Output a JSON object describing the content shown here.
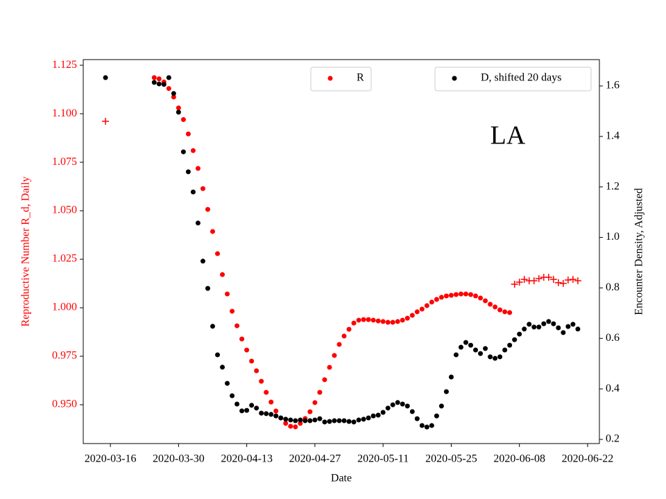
{
  "chart_data": {
    "type": "scatter",
    "xlabel": "Date",
    "ylabel": "Reproductive Number R_d, Daily",
    "y2label": "Encounter Density, Adjusted",
    "annotation": "LA",
    "xlim": [
      "2020-03-10",
      "2020-06-24"
    ],
    "xticks": [
      "2020-03-16",
      "2020-03-30",
      "2020-04-13",
      "2020-04-27",
      "2020-05-11",
      "2020-05-25",
      "2020-06-08",
      "2020-06-22"
    ],
    "ylim": [
      0.93,
      1.1279
    ],
    "yticks": [
      {
        "value": 0.95,
        "label": "0.950"
      },
      {
        "value": 0.975,
        "label": "0.975"
      },
      {
        "value": 1.0,
        "label": "1.000"
      },
      {
        "value": 1.025,
        "label": "1.025"
      },
      {
        "value": 1.05,
        "label": "1.050"
      },
      {
        "value": 1.075,
        "label": "1.075"
      },
      {
        "value": 1.1,
        "label": "1.100"
      },
      {
        "value": 1.125,
        "label": "1.125"
      }
    ],
    "y2lim": [
      0.1835,
      1.7043
    ],
    "y2ticks": [
      0.2,
      0.4,
      0.6,
      0.8,
      {
        "value": 1.0,
        "label": "1.0"
      },
      1.2,
      1.4,
      1.6
    ],
    "ycolor": "#ff0000",
    "series": [
      {
        "name": "R",
        "color": "#ff0000",
        "marker": "o",
        "x": [
          "2020-03-25",
          "2020-03-26",
          "2020-03-27",
          "2020-03-28",
          "2020-03-29",
          "2020-03-30",
          "2020-03-31",
          "2020-04-01",
          "2020-04-02",
          "2020-04-03",
          "2020-04-04",
          "2020-04-05",
          "2020-04-06",
          "2020-04-07",
          "2020-04-08",
          "2020-04-09",
          "2020-04-10",
          "2020-04-11",
          "2020-04-12",
          "2020-04-13",
          "2020-04-14",
          "2020-04-15",
          "2020-04-16",
          "2020-04-17",
          "2020-04-18",
          "2020-04-19",
          "2020-04-20",
          "2020-04-21",
          "2020-04-22",
          "2020-04-23",
          "2020-04-24",
          "2020-04-25",
          "2020-04-26",
          "2020-04-27",
          "2020-04-28",
          "2020-04-29",
          "2020-04-30",
          "2020-05-01",
          "2020-05-02",
          "2020-05-03",
          "2020-05-04",
          "2020-05-05",
          "2020-05-06",
          "2020-05-07",
          "2020-05-08",
          "2020-05-09",
          "2020-05-10",
          "2020-05-11",
          "2020-05-12",
          "2020-05-13",
          "2020-05-14",
          "2020-05-15",
          "2020-05-16",
          "2020-05-17",
          "2020-05-18",
          "2020-05-19",
          "2020-05-20",
          "2020-05-21",
          "2020-05-22",
          "2020-05-23",
          "2020-05-24",
          "2020-05-25",
          "2020-05-26",
          "2020-05-27",
          "2020-05-28",
          "2020-05-29",
          "2020-05-30",
          "2020-05-31",
          "2020-06-01",
          "2020-06-02",
          "2020-06-03",
          "2020-06-04",
          "2020-06-05",
          "2020-06-06"
        ],
        "values": [
          1.1186,
          1.118,
          1.1164,
          1.113,
          1.1086,
          1.103,
          1.097,
          1.0896,
          1.081,
          1.0718,
          1.0614,
          1.0507,
          1.0393,
          1.0279,
          1.0171,
          1.0071,
          0.9982,
          0.9907,
          0.9839,
          0.9782,
          0.9725,
          0.9675,
          0.9621,
          0.9564,
          0.9514,
          0.9468,
          0.9432,
          0.9404,
          0.9389,
          0.9386,
          0.9404,
          0.9429,
          0.9464,
          0.9511,
          0.9564,
          0.9629,
          0.9693,
          0.9754,
          0.9811,
          0.9854,
          0.9889,
          0.9921,
          0.9936,
          0.9939,
          0.9939,
          0.9936,
          0.9932,
          0.9929,
          0.9925,
          0.9925,
          0.9929,
          0.9936,
          0.9946,
          0.9961,
          0.9979,
          0.9993,
          1.0011,
          1.0029,
          1.0043,
          1.0054,
          1.0061,
          1.0064,
          1.0068,
          1.0071,
          1.0071,
          1.0068,
          1.0061,
          1.005,
          1.0036,
          1.0018,
          1.0004,
          0.9989,
          0.9979,
          0.9975
        ]
      },
      {
        "color": "#ff0000",
        "marker": "+",
        "x": [
          "2020-03-15",
          "2020-06-07",
          "2020-06-08",
          "2020-06-09",
          "2020-06-10",
          "2020-06-11",
          "2020-06-12",
          "2020-06-13",
          "2020-06-14",
          "2020-06-15",
          "2020-06-16",
          "2020-06-17",
          "2020-06-18",
          "2020-06-19",
          "2020-06-20"
        ],
        "values": [
          1.0961,
          1.0121,
          1.0132,
          1.0146,
          1.0139,
          1.0139,
          1.015,
          1.0157,
          1.0157,
          1.0146,
          1.0129,
          1.0125,
          1.0143,
          1.0146,
          1.0139
        ]
      },
      {
        "name": "D, shifted 20 days",
        "color": "#000000",
        "marker": "o",
        "axis": "y2",
        "x": [
          "2020-03-15",
          "2020-03-25",
          "2020-03-26",
          "2020-03-27",
          "2020-03-28",
          "2020-03-29",
          "2020-03-30",
          "2020-03-31",
          "2020-04-01",
          "2020-04-02",
          "2020-04-03",
          "2020-04-04",
          "2020-04-05",
          "2020-04-06",
          "2020-04-07",
          "2020-04-08",
          "2020-04-09",
          "2020-04-10",
          "2020-04-11",
          "2020-04-12",
          "2020-04-13",
          "2020-04-14",
          "2020-04-15",
          "2020-04-16",
          "2020-04-17",
          "2020-04-18",
          "2020-04-19",
          "2020-04-20",
          "2020-04-21",
          "2020-04-22",
          "2020-04-23",
          "2020-04-24",
          "2020-04-25",
          "2020-04-26",
          "2020-04-27",
          "2020-04-28",
          "2020-04-29",
          "2020-04-30",
          "2020-05-01",
          "2020-05-02",
          "2020-05-03",
          "2020-05-04",
          "2020-05-05",
          "2020-05-06",
          "2020-05-07",
          "2020-05-08",
          "2020-05-09",
          "2020-05-10",
          "2020-05-11",
          "2020-05-12",
          "2020-05-13",
          "2020-05-14",
          "2020-05-15",
          "2020-05-16",
          "2020-05-17",
          "2020-05-18",
          "2020-05-19",
          "2020-05-20",
          "2020-05-21",
          "2020-05-22",
          "2020-05-23",
          "2020-05-24",
          "2020-05-25",
          "2020-05-26",
          "2020-05-27",
          "2020-05-28",
          "2020-05-29",
          "2020-05-30",
          "2020-05-31",
          "2020-06-01",
          "2020-06-02",
          "2020-06-03",
          "2020-06-04",
          "2020-06-05",
          "2020-06-06",
          "2020-06-07",
          "2020-06-08",
          "2020-06-09",
          "2020-06-10",
          "2020-06-11",
          "2020-06-12",
          "2020-06-13",
          "2020-06-14",
          "2020-06-15",
          "2020-06-16",
          "2020-06-17",
          "2020-06-18",
          "2020-06-19",
          "2020-06-20"
        ],
        "values": [
          1.633,
          1.614,
          1.608,
          1.606,
          1.633,
          1.57,
          1.496,
          1.339,
          1.26,
          1.18,
          1.057,
          0.906,
          0.798,
          0.648,
          0.535,
          0.486,
          0.422,
          0.373,
          0.34,
          0.313,
          0.315,
          0.335,
          0.324,
          0.304,
          0.302,
          0.299,
          0.293,
          0.285,
          0.28,
          0.277,
          0.274,
          0.277,
          0.274,
          0.274,
          0.277,
          0.282,
          0.269,
          0.271,
          0.274,
          0.274,
          0.274,
          0.271,
          0.269,
          0.277,
          0.28,
          0.285,
          0.293,
          0.296,
          0.307,
          0.324,
          0.337,
          0.346,
          0.34,
          0.332,
          0.31,
          0.282,
          0.255,
          0.249,
          0.255,
          0.293,
          0.332,
          0.389,
          0.447,
          0.535,
          0.565,
          0.584,
          0.573,
          0.554,
          0.54,
          0.56,
          0.527,
          0.521,
          0.527,
          0.554,
          0.573,
          0.595,
          0.617,
          0.637,
          0.656,
          0.645,
          0.645,
          0.658,
          0.667,
          0.658,
          0.642,
          0.623,
          0.647,
          0.656,
          0.637
        ]
      }
    ]
  }
}
